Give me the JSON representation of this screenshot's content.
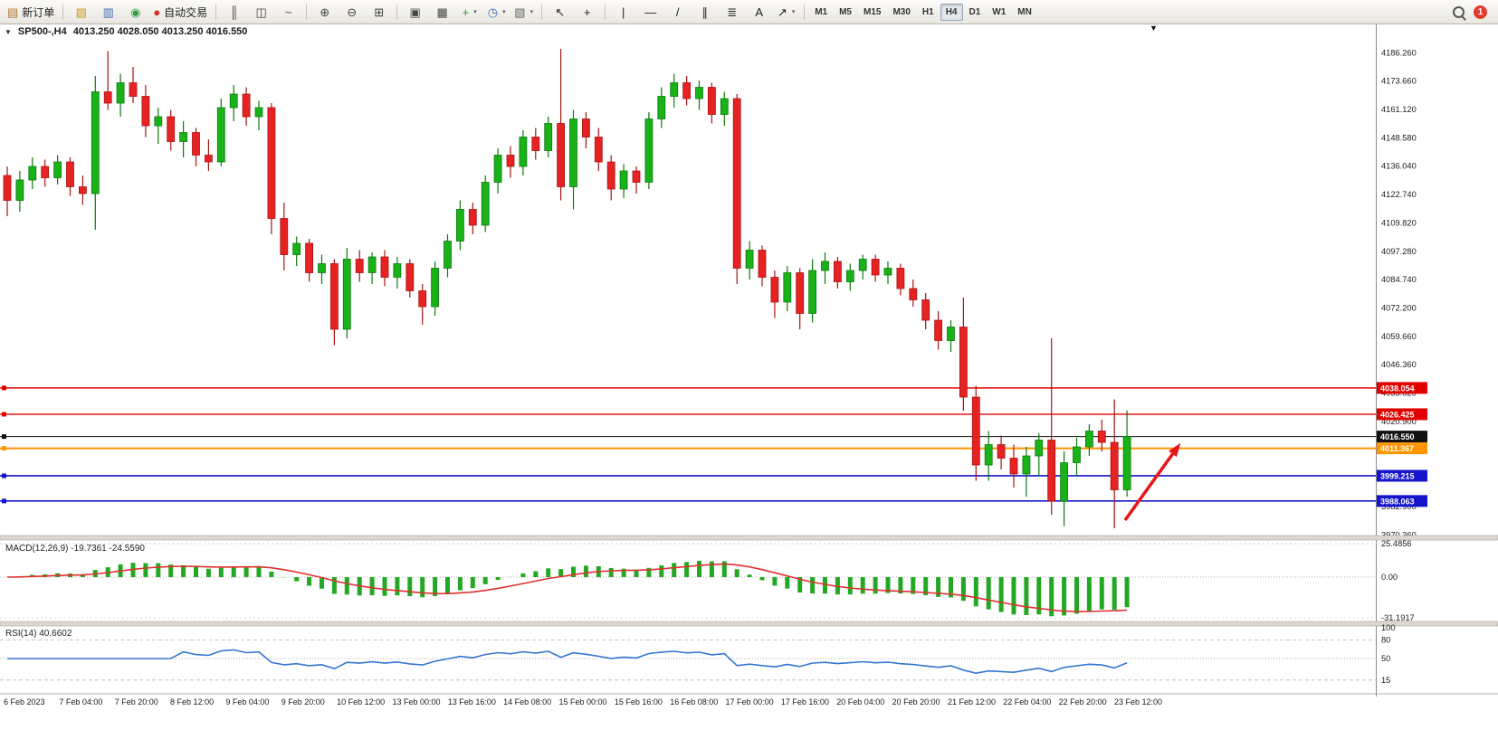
{
  "toolbar": {
    "left_items": [
      {
        "name": "new-order-button",
        "glyph": "▤",
        "color": "#b3762a",
        "label": "新订单"
      },
      {
        "name": "separator"
      },
      {
        "name": "market-watch-icon",
        "glyph": "▨",
        "color": "#c79a1e"
      },
      {
        "name": "data-window-icon",
        "glyph": "▥",
        "color": "#3f6fb5"
      },
      {
        "name": "navigator-icon",
        "glyph": "◉",
        "color": "#2f9e44"
      },
      {
        "name": "autotrading-button",
        "glyph": "●",
        "color": "#d6281e",
        "label": "自动交易"
      },
      {
        "name": "separator"
      },
      {
        "name": "bar-chart-icon",
        "glyph": "║",
        "color": "#444"
      },
      {
        "name": "candlestick-chart-icon",
        "glyph": "◫",
        "color": "#444"
      },
      {
        "name": "line-chart-icon",
        "glyph": "~",
        "color": "#444"
      },
      {
        "name": "separator"
      },
      {
        "name": "zoom-in-icon",
        "glyph": "⊕",
        "color": "#444"
      },
      {
        "name": "zoom-out-icon",
        "glyph": "⊖",
        "color": "#444"
      },
      {
        "name": "tile-windows-icon",
        "glyph": "⊞",
        "color": "#444"
      },
      {
        "name": "separator"
      },
      {
        "name": "arrange-windows-icon",
        "glyph": "▣",
        "color": "#444"
      },
      {
        "name": "cascade-windows-icon",
        "glyph": "▦",
        "color": "#444"
      },
      {
        "name": "add-indicator-button",
        "glyph": "+",
        "color": "#1f9d1f",
        "caret": true
      },
      {
        "name": "timeframe-menu-button",
        "glyph": "◷",
        "color": "#3f6fb5",
        "caret": true
      },
      {
        "name": "template-menu-button",
        "glyph": "▧",
        "color": "#666",
        "caret": true
      },
      {
        "name": "separator"
      },
      {
        "name": "cursor-tool-button",
        "glyph": "↖",
        "color": "#222"
      },
      {
        "name": "crosshair-tool-button",
        "glyph": "+",
        "color": "#222"
      },
      {
        "name": "separator"
      },
      {
        "name": "vertical-line-tool-button",
        "glyph": "|",
        "color": "#222"
      },
      {
        "name": "horizontal-line-tool-button",
        "glyph": "—",
        "color": "#222"
      },
      {
        "name": "trendline-tool-button",
        "glyph": "/",
        "color": "#222"
      },
      {
        "name": "channel-tool-button",
        "glyph": "∥",
        "color": "#222"
      },
      {
        "name": "fibonacci-tool-button",
        "glyph": "≣",
        "color": "#222"
      },
      {
        "name": "text-tool-button",
        "glyph": "A",
        "color": "#222"
      },
      {
        "name": "arrow-objects-menu-button",
        "glyph": "↗",
        "color": "#222",
        "caret": true
      },
      {
        "name": "separator"
      }
    ],
    "timeframes": [
      "M1",
      "M5",
      "M15",
      "M30",
      "H1",
      "H4",
      "D1",
      "W1",
      "MN"
    ],
    "active_timeframe": "H4",
    "badge": "1"
  },
  "chart_header": {
    "collapse_icon": "▼",
    "window_marker": "▼",
    "symbol": "SP500-,H4",
    "ohlc": "4013.250 4028.050 4013.250 4016.550"
  },
  "price_axis": [
    "4186.260",
    "4173.660",
    "4161.120",
    "4148.580",
    "4136.040",
    "4122.740",
    "4109.820",
    "4097.280",
    "4084.740",
    "4072.200",
    "4059.660",
    "4046.360",
    "4033.820",
    "4020.900",
    "4008.380",
    "3995.440",
    "3982.900",
    "3970.360"
  ],
  "hlines": [
    {
      "name": "resistance-line-1",
      "price": 4038.054,
      "label": "4038.054",
      "color": "#e00000",
      "width": 1.4
    },
    {
      "name": "resistance-line-2",
      "price": 4026.425,
      "label": "4026.425",
      "color": "#e00000",
      "width": 1.4
    },
    {
      "name": "current-price-line",
      "price": 4016.55,
      "label": "4016.550",
      "color": "#111111",
      "width": 1
    },
    {
      "name": "entry-line",
      "price": 4011.367,
      "label": "4011.367",
      "color": "#ff9500",
      "width": 2
    },
    {
      "name": "support-line-1",
      "price": 3999.215,
      "label": "3999.215",
      "color": "#1515cc",
      "width": 1.6
    },
    {
      "name": "support-line-2",
      "price": 3988.063,
      "label": "3988.063",
      "color": "#1515cc",
      "width": 1.6
    }
  ],
  "chart_data": {
    "type": "candlestick",
    "symbol": "SP500-",
    "timeframe": "H4",
    "ylim": [
      3966,
      4196
    ],
    "candles": [
      [
        4132,
        4136,
        4114,
        4121
      ],
      [
        4121,
        4134,
        4116,
        4130
      ],
      [
        4130,
        4140,
        4126,
        4136
      ],
      [
        4136,
        4139,
        4127,
        4131
      ],
      [
        4131,
        4141,
        4128,
        4138
      ],
      [
        4138,
        4140,
        4123,
        4127
      ],
      [
        4127,
        4132,
        4119,
        4124
      ],
      [
        4124,
        4176,
        4108,
        4169
      ],
      [
        4169,
        4187,
        4161,
        4164
      ],
      [
        4164,
        4177,
        4158,
        4173
      ],
      [
        4173,
        4180,
        4164,
        4167
      ],
      [
        4167,
        4172,
        4149,
        4154
      ],
      [
        4154,
        4162,
        4146,
        4158
      ],
      [
        4158,
        4161,
        4143,
        4147
      ],
      [
        4147,
        4156,
        4140,
        4151
      ],
      [
        4151,
        4153,
        4136,
        4141
      ],
      [
        4141,
        4148,
        4134,
        4138
      ],
      [
        4138,
        4166,
        4136,
        4162
      ],
      [
        4162,
        4172,
        4156,
        4168
      ],
      [
        4168,
        4171,
        4154,
        4158
      ],
      [
        4158,
        4165,
        4152,
        4162
      ],
      [
        4162,
        4164,
        4106,
        4113
      ],
      [
        4113,
        4120,
        4090,
        4097
      ],
      [
        4097,
        4105,
        4092,
        4102
      ],
      [
        4102,
        4104,
        4085,
        4089
      ],
      [
        4089,
        4097,
        4084,
        4093
      ],
      [
        4093,
        4095,
        4057,
        4064
      ],
      [
        4064,
        4100,
        4060,
        4095
      ],
      [
        4095,
        4099,
        4085,
        4089
      ],
      [
        4089,
        4098,
        4084,
        4096
      ],
      [
        4096,
        4099,
        4083,
        4087
      ],
      [
        4087,
        4096,
        4082,
        4093
      ],
      [
        4093,
        4095,
        4078,
        4081
      ],
      [
        4081,
        4084,
        4066,
        4074
      ],
      [
        4074,
        4094,
        4070,
        4091
      ],
      [
        4091,
        4106,
        4087,
        4103
      ],
      [
        4103,
        4121,
        4099,
        4117
      ],
      [
        4117,
        4120,
        4106,
        4110
      ],
      [
        4110,
        4132,
        4107,
        4129
      ],
      [
        4129,
        4144,
        4124,
        4141
      ],
      [
        4141,
        4145,
        4131,
        4136
      ],
      [
        4136,
        4152,
        4132,
        4149
      ],
      [
        4149,
        4153,
        4139,
        4143
      ],
      [
        4143,
        4158,
        4140,
        4155
      ],
      [
        4155,
        4188,
        4121,
        4127
      ],
      [
        4127,
        4161,
        4117,
        4157
      ],
      [
        4157,
        4160,
        4144,
        4149
      ],
      [
        4149,
        4153,
        4134,
        4138
      ],
      [
        4138,
        4141,
        4121,
        4126
      ],
      [
        4126,
        4137,
        4122,
        4134
      ],
      [
        4134,
        4136,
        4124,
        4129
      ],
      [
        4129,
        4160,
        4126,
        4157
      ],
      [
        4157,
        4171,
        4153,
        4167
      ],
      [
        4167,
        4177,
        4162,
        4173
      ],
      [
        4173,
        4176,
        4163,
        4166
      ],
      [
        4166,
        4174,
        4161,
        4171
      ],
      [
        4171,
        4173,
        4155,
        4159
      ],
      [
        4159,
        4169,
        4154,
        4166
      ],
      [
        4166,
        4168,
        4084,
        4091
      ],
      [
        4091,
        4103,
        4086,
        4099
      ],
      [
        4099,
        4101,
        4083,
        4087
      ],
      [
        4087,
        4090,
        4069,
        4076
      ],
      [
        4076,
        4092,
        4072,
        4089
      ],
      [
        4089,
        4091,
        4064,
        4071
      ],
      [
        4071,
        4095,
        4067,
        4090
      ],
      [
        4090,
        4098,
        4084,
        4094
      ],
      [
        4094,
        4096,
        4082,
        4085
      ],
      [
        4085,
        4093,
        4081,
        4090
      ],
      [
        4090,
        4097,
        4086,
        4095
      ],
      [
        4095,
        4097,
        4085,
        4088
      ],
      [
        4088,
        4094,
        4084,
        4091
      ],
      [
        4091,
        4093,
        4079,
        4082
      ],
      [
        4082,
        4086,
        4074,
        4077
      ],
      [
        4077,
        4080,
        4064,
        4068
      ],
      [
        4068,
        4072,
        4055,
        4059
      ],
      [
        4059,
        4068,
        4054,
        4065
      ],
      [
        4065,
        4078,
        4028,
        4034
      ],
      [
        4034,
        4039,
        3997,
        4004
      ],
      [
        4004,
        4019,
        3997,
        4013
      ],
      [
        4013,
        4017,
        4002,
        4007
      ],
      [
        4007,
        4013,
        3994,
        4000
      ],
      [
        4000,
        4012,
        3990,
        4008
      ],
      [
        4008,
        4018,
        3999,
        4015
      ],
      [
        4015,
        4060,
        3982,
        3988
      ],
      [
        3988,
        4010,
        3977,
        4005
      ],
      [
        4005,
        4016,
        3999,
        4012
      ],
      [
        4012,
        4022,
        4008,
        4019
      ],
      [
        4019,
        4024,
        4010,
        4014
      ],
      [
        4014,
        4033,
        3976,
        3993
      ],
      [
        3993,
        4028.05,
        3990,
        4016.55
      ]
    ]
  },
  "macd": {
    "title": "MACD(12,26,9)",
    "values_text": "-19.7361 -24.5590",
    "params": {
      "fast": 12,
      "slow": 26,
      "signal": 9
    },
    "scale": [
      {
        "label": "25.4856",
        "value": 25.4856
      },
      {
        "label": "0.00",
        "value": 0
      },
      {
        "label": "-31.1917",
        "value": -31.1917
      }
    ]
  },
  "rsi": {
    "title": "RSI(14)",
    "value_text": "40.6602",
    "period": 14,
    "scale": [
      {
        "label": "100",
        "value": 100
      },
      {
        "label": "80",
        "value": 80
      },
      {
        "label": "50",
        "value": 50
      },
      {
        "label": "15",
        "value": 15
      }
    ],
    "levels": [
      80,
      50,
      15
    ]
  },
  "time_axis": [
    "6 Feb 2023",
    "7 Feb 04:00",
    "7 Feb 20:00",
    "8 Feb 12:00",
    "9 Feb 04:00",
    "9 Feb 20:00",
    "10 Feb 12:00",
    "13 Feb 00:00",
    "13 Feb 16:00",
    "14 Feb 08:00",
    "15 Feb 00:00",
    "15 Feb 16:00",
    "16 Feb 08:00",
    "17 Feb 00:00",
    "17 Feb 16:00",
    "20 Feb 04:00",
    "20 Feb 20:00",
    "21 Feb 12:00",
    "22 Feb 04:00",
    "22 Feb 20:00",
    "23 Feb 12:00"
  ],
  "annotation": {
    "name": "trend-arrow",
    "color": "#e81515",
    "from": [
      1243,
      549
    ],
    "to": [
      1299,
      471
    ]
  },
  "colors": {
    "up": "#19b219",
    "up_border": "#0d7a0d",
    "down": "#e62222",
    "down_border": "#a81414",
    "macd_hist": "#22a822",
    "macd_signal": "#e03030",
    "rsi_line": "#3575d4"
  }
}
